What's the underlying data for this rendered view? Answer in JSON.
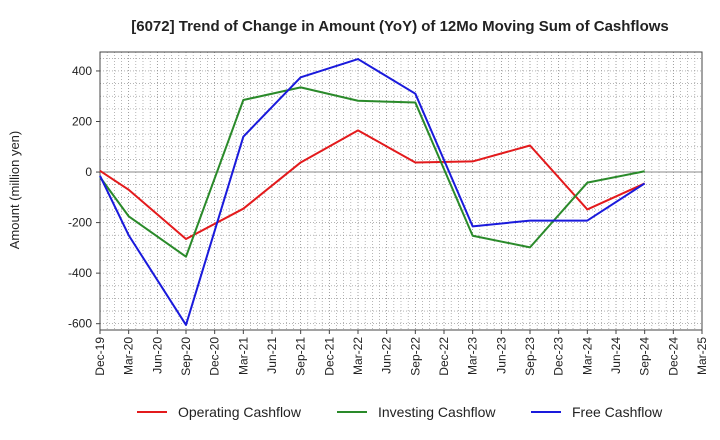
{
  "chart_data": {
    "type": "line",
    "title": "[6072]  Trend of Change in Amount (YoY) of 12Mo Moving Sum of Cashflows",
    "xlabel": "",
    "ylabel": "Amount (million yen)",
    "ylim": [
      -625,
      475
    ],
    "yticks": [
      400,
      200,
      0,
      -200,
      -400,
      -600
    ],
    "categories": [
      "Dec-19",
      "Mar-20",
      "Jun-20",
      "Sep-20",
      "Dec-20",
      "Mar-21",
      "Jun-21",
      "Sep-21",
      "Dec-21",
      "Mar-22",
      "Jun-22",
      "Sep-22",
      "Dec-22",
      "Mar-23",
      "Jun-23",
      "Sep-23",
      "Dec-23",
      "Mar-24",
      "Jun-24",
      "Sep-24",
      "Dec-24",
      "Mar-25"
    ],
    "grid": true,
    "legend_position": "bottom",
    "series": [
      {
        "name": "Operating Cashflow",
        "color": "#e31a1c",
        "values": [
          5,
          -70,
          null,
          -265,
          null,
          -145,
          null,
          38,
          null,
          165,
          null,
          38,
          null,
          42,
          null,
          105,
          null,
          -148,
          null,
          -45,
          null,
          null
        ]
      },
      {
        "name": "Investing Cashflow",
        "color": "#2a8a2a",
        "values": [
          -20,
          -175,
          null,
          -335,
          null,
          285,
          null,
          335,
          null,
          282,
          null,
          275,
          null,
          -252,
          null,
          -298,
          null,
          -42,
          null,
          3,
          null,
          null
        ]
      },
      {
        "name": "Free Cashflow",
        "color": "#1a1adc",
        "values": [
          -15,
          -250,
          null,
          -605,
          null,
          140,
          null,
          375,
          null,
          447,
          null,
          310,
          null,
          -215,
          null,
          -192,
          null,
          -192,
          null,
          -45,
          null,
          null
        ]
      }
    ]
  }
}
